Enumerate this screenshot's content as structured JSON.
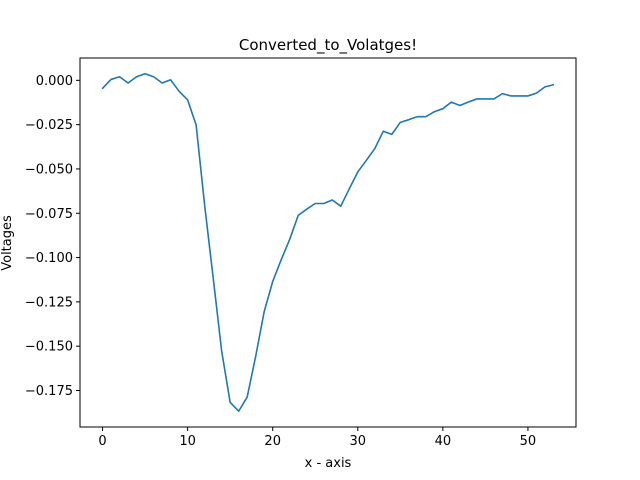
{
  "chart_data": {
    "type": "line",
    "title": "Converted_to_Volatges!",
    "xlabel": "x - axis",
    "ylabel": "Voltages",
    "xlim": [
      -2.65,
      55.65
    ],
    "ylim": [
      -0.1956,
      0.0126
    ],
    "xticks": [
      0,
      10,
      20,
      30,
      40,
      50
    ],
    "xtick_labels": [
      "0",
      "10",
      "20",
      "30",
      "40",
      "50"
    ],
    "yticks": [
      0.0,
      -0.025,
      -0.05,
      -0.075,
      -0.1,
      -0.125,
      -0.15,
      -0.175
    ],
    "ytick_labels": [
      "0.000",
      "−0.025",
      "−0.050",
      "−0.075",
      "−0.100",
      "−0.125",
      "−0.150",
      "−0.175"
    ],
    "grid": false,
    "line_color": "#1f77b4",
    "series": [
      {
        "x": [
          0,
          1,
          2,
          3,
          4,
          5,
          6,
          7,
          8,
          9,
          10,
          11,
          12,
          13,
          14,
          15,
          16,
          17,
          18,
          19,
          20,
          21,
          22,
          23,
          24,
          25,
          26,
          27,
          28,
          29,
          30,
          31,
          32,
          33,
          34,
          35,
          36,
          37,
          38,
          39,
          40,
          41,
          42,
          43,
          44,
          45,
          46,
          47,
          48,
          49,
          50,
          51,
          52,
          53
        ],
        "values": [
          -0.0045,
          0.0005,
          0.002,
          -0.0015,
          0.002,
          0.0037,
          0.002,
          -0.0015,
          0.0003,
          -0.0062,
          -0.011,
          -0.0252,
          -0.0705,
          -0.1113,
          -0.1527,
          -0.1817,
          -0.1867,
          -0.1787,
          -0.1557,
          -0.1305,
          -0.1135,
          -0.1012,
          -0.0897,
          -0.0762,
          -0.0727,
          -0.0695,
          -0.0695,
          -0.0675,
          -0.071,
          -0.0612,
          -0.0517,
          -0.0452,
          -0.0385,
          -0.0287,
          -0.0305,
          -0.0237,
          -0.0222,
          -0.0205,
          -0.0205,
          -0.0177,
          -0.016,
          -0.0123,
          -0.0142,
          -0.0122,
          -0.0105,
          -0.0105,
          -0.0105,
          -0.0075,
          -0.0088,
          -0.0088,
          -0.0088,
          -0.0072,
          -0.0037,
          -0.0025
        ]
      }
    ]
  }
}
